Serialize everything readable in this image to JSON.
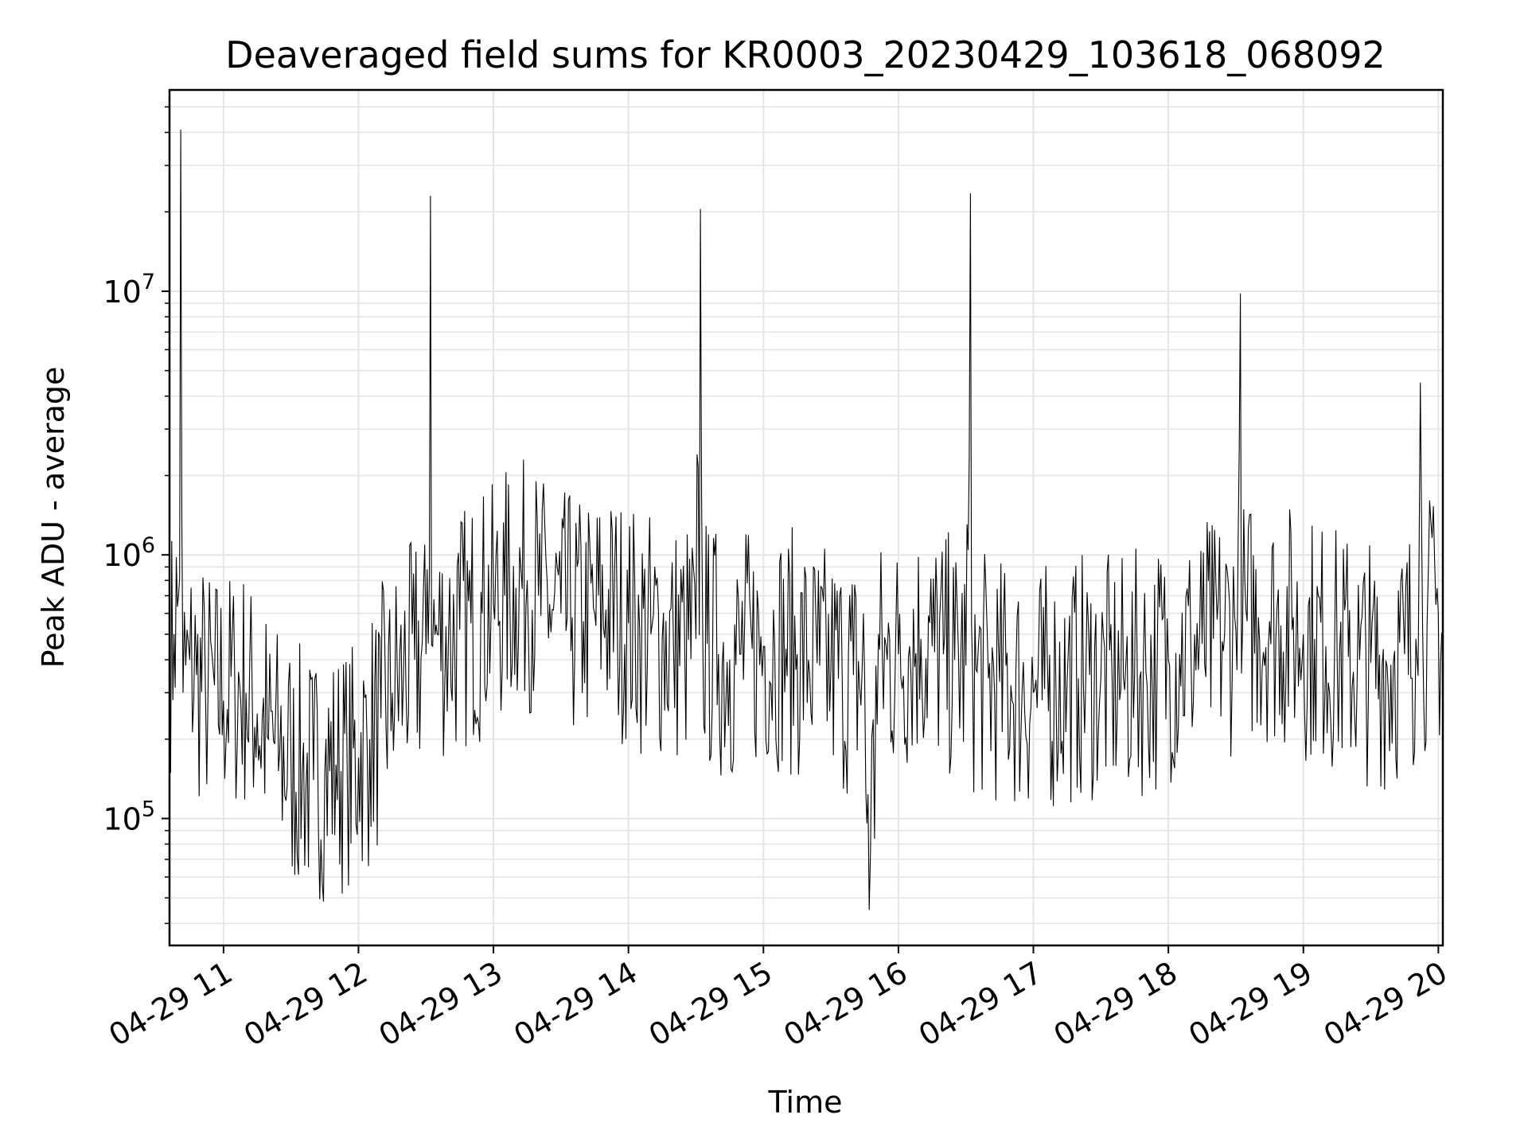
{
  "chart_data": {
    "type": "line",
    "title": "Deaveraged field sums for KR0003_20230429_103618_068092",
    "xlabel": "Time",
    "ylabel": "Peak ADU - average",
    "xscale": "date",
    "yscale": "log",
    "xlim": [
      "2023-04-29 10:36",
      "2023-04-29 20:02"
    ],
    "ylim": [
      33000,
      58000000
    ],
    "grid": true,
    "grid_color": "#e5e5e5",
    "line_color": "#000000",
    "xticks": [
      {
        "value": "2023-04-29 11:00",
        "label": "04-29 11"
      },
      {
        "value": "2023-04-29 12:00",
        "label": "04-29 12"
      },
      {
        "value": "2023-04-29 13:00",
        "label": "04-29 13"
      },
      {
        "value": "2023-04-29 14:00",
        "label": "04-29 14"
      },
      {
        "value": "2023-04-29 15:00",
        "label": "04-29 15"
      },
      {
        "value": "2023-04-29 16:00",
        "label": "04-29 16"
      },
      {
        "value": "2023-04-29 17:00",
        "label": "04-29 17"
      },
      {
        "value": "2023-04-29 18:00",
        "label": "04-29 18"
      },
      {
        "value": "2023-04-29 19:00",
        "label": "04-29 19"
      },
      {
        "value": "2023-04-29 20:00",
        "label": "04-29 20"
      }
    ],
    "yticks": [
      {
        "value": 100000,
        "base": "10",
        "exp": "5"
      },
      {
        "value": 1000000,
        "base": "10",
        "exp": "6"
      },
      {
        "value": 10000000,
        "base": "10",
        "exp": "7"
      }
    ],
    "series": [
      {
        "x": [
          "2023-04-29 10:36",
          "2023-04-29 10:38",
          "2023-04-29 10:40",
          "2023-04-29 10:41",
          "2023-04-29 10:42",
          "2023-04-29 10:45",
          "2023-04-29 10:48",
          "2023-04-29 10:52",
          "2023-04-29 10:56",
          "2023-04-29 11:00",
          "2023-04-29 11:05",
          "2023-04-29 11:10",
          "2023-04-29 11:15",
          "2023-04-29 11:20",
          "2023-04-29 11:25",
          "2023-04-29 11:30",
          "2023-04-29 11:35",
          "2023-04-29 11:40",
          "2023-04-29 11:45",
          "2023-04-29 11:50",
          "2023-04-29 11:55",
          "2023-04-29 12:00",
          "2023-04-29 12:05",
          "2023-04-29 12:10",
          "2023-04-29 12:15",
          "2023-04-29 12:20",
          "2023-04-29 12:25",
          "2023-04-29 12:30",
          "2023-04-29 12:32",
          "2023-04-29 12:33",
          "2023-04-29 12:35",
          "2023-04-29 12:40",
          "2023-04-29 12:45",
          "2023-04-29 12:50",
          "2023-04-29 12:55",
          "2023-04-29 13:00",
          "2023-04-29 13:05",
          "2023-04-29 13:10",
          "2023-04-29 13:15",
          "2023-04-29 13:20",
          "2023-04-29 13:25",
          "2023-04-29 13:30",
          "2023-04-29 13:35",
          "2023-04-29 13:40",
          "2023-04-29 13:45",
          "2023-04-29 13:50",
          "2023-04-29 13:55",
          "2023-04-29 14:00",
          "2023-04-29 14:05",
          "2023-04-29 14:10",
          "2023-04-29 14:15",
          "2023-04-29 14:20",
          "2023-04-29 14:25",
          "2023-04-29 14:30",
          "2023-04-29 14:32",
          "2023-04-29 14:33",
          "2023-04-29 14:35",
          "2023-04-29 14:40",
          "2023-04-29 14:45",
          "2023-04-29 14:50",
          "2023-04-29 14:55",
          "2023-04-29 15:00",
          "2023-04-29 15:05",
          "2023-04-29 15:10",
          "2023-04-29 15:15",
          "2023-04-29 15:20",
          "2023-04-29 15:25",
          "2023-04-29 15:30",
          "2023-04-29 15:35",
          "2023-04-29 15:40",
          "2023-04-29 15:45",
          "2023-04-29 15:47",
          "2023-04-29 15:50",
          "2023-04-29 15:55",
          "2023-04-29 16:00",
          "2023-04-29 16:05",
          "2023-04-29 16:10",
          "2023-04-29 16:15",
          "2023-04-29 16:20",
          "2023-04-29 16:25",
          "2023-04-29 16:30",
          "2023-04-29 16:32",
          "2023-04-29 16:33",
          "2023-04-29 16:35",
          "2023-04-29 16:40",
          "2023-04-29 16:45",
          "2023-04-29 16:50",
          "2023-04-29 16:55",
          "2023-04-29 17:00",
          "2023-04-29 17:05",
          "2023-04-29 17:10",
          "2023-04-29 17:15",
          "2023-04-29 17:20",
          "2023-04-29 17:25",
          "2023-04-29 17:30",
          "2023-04-29 17:35",
          "2023-04-29 17:40",
          "2023-04-29 17:45",
          "2023-04-29 17:50",
          "2023-04-29 17:55",
          "2023-04-29 18:00",
          "2023-04-29 18:05",
          "2023-04-29 18:10",
          "2023-04-29 18:15",
          "2023-04-29 18:20",
          "2023-04-29 18:25",
          "2023-04-29 18:30",
          "2023-04-29 18:32",
          "2023-04-29 18:33",
          "2023-04-29 18:35",
          "2023-04-29 18:40",
          "2023-04-29 18:45",
          "2023-04-29 18:50",
          "2023-04-29 18:55",
          "2023-04-29 19:00",
          "2023-04-29 19:05",
          "2023-04-29 19:10",
          "2023-04-29 19:15",
          "2023-04-29 19:20",
          "2023-04-29 19:25",
          "2023-04-29 19:30",
          "2023-04-29 19:35",
          "2023-04-29 19:40",
          "2023-04-29 19:45",
          "2023-04-29 19:50",
          "2023-04-29 19:52",
          "2023-04-29 19:53",
          "2023-04-29 19:55",
          "2023-04-29 20:00",
          "2023-04-29 20:02"
        ],
        "y": [
          400000,
          500000,
          700000,
          41000000,
          300000,
          400000,
          350000,
          300000,
          320000,
          280000,
          330000,
          300000,
          250000,
          200000,
          180000,
          160000,
          150000,
          140000,
          150000,
          160000,
          150000,
          170000,
          200000,
          240000,
          300000,
          350000,
          400000,
          420000,
          23000000,
          450000,
          500000,
          480000,
          520000,
          550000,
          600000,
          650000,
          700000,
          750000,
          800000,
          700000,
          650000,
          600000,
          580000,
          560000,
          600000,
          620000,
          600000,
          550000,
          520000,
          500000,
          480000,
          460000,
          470000,
          480000,
          20500000,
          500000,
          460000,
          420000,
          400000,
          420000,
          440000,
          450000,
          460000,
          440000,
          420000,
          400000,
          380000,
          370000,
          360000,
          350000,
          340000,
          45000,
          380000,
          400000,
          420000,
          450000,
          480000,
          450000,
          420000,
          400000,
          380000,
          23500000,
          350000,
          360000,
          340000,
          330000,
          320000,
          310000,
          300000,
          310000,
          320000,
          330000,
          340000,
          350000,
          340000,
          330000,
          340000,
          350000,
          360000,
          380000,
          400000,
          420000,
          440000,
          460000,
          480000,
          500000,
          520000,
          9800000,
          540000,
          560000,
          580000,
          560000,
          540000,
          520000,
          500000,
          480000,
          450000,
          430000,
          410000,
          400000,
          390000,
          380000,
          390000,
          420000,
          480000,
          4500000,
          520000,
          550000,
          600000,
          480000
        ]
      }
    ]
  }
}
